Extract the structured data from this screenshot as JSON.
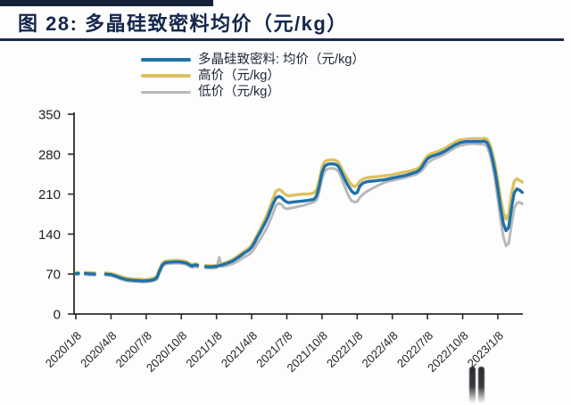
{
  "figure": {
    "title": "图 28: 多晶硅致密料均价（元/kg）"
  },
  "legend": {
    "items": [
      {
        "label": "多晶硅致密料: 均价（元/kg）",
        "color": "#1f72a8"
      },
      {
        "label": "高价（元/kg）",
        "color": "#ddc160"
      },
      {
        "label": "低价（元/kg）",
        "color": "#b9b9bc"
      }
    ]
  },
  "chart_data": {
    "type": "line",
    "title": "图 28: 多晶硅致密料均价（元/kg）",
    "xlabel": "",
    "ylabel": "元/kg",
    "ylim": [
      0,
      350
    ],
    "grid": false,
    "legend_position": "top",
    "x_tick_labels": [
      "2020/1/8",
      "2020/4/8",
      "2020/7/8",
      "2020/10/8",
      "2021/1/8",
      "2021/4/8",
      "2021/7/8",
      "2021/10/8",
      "2022/1/8",
      "2022/4/8",
      "2022/7/8",
      "2022/10/8",
      "2023/1/8"
    ],
    "y_ticks": [
      0,
      70,
      140,
      210,
      280,
      350
    ],
    "y_tick_labels": [
      "0",
      "70",
      "140",
      "210",
      "280",
      "350"
    ],
    "x_unit": "weeks since 2020/1/8 (columns: week, 均价, 高价, 低价; null = data gap)",
    "series": [
      {
        "name": "多晶硅致密料: 均价（元/kg）",
        "color": "#1f72a8",
        "width": 3.4,
        "column": 1
      },
      {
        "name": "高价（元/kg）",
        "color": "#ddc160",
        "width": 3.4,
        "column": 2
      },
      {
        "name": "低价（元/kg）",
        "color": "#b9b9bc",
        "width": 3.0,
        "column": 3
      }
    ],
    "rows": [
      [
        0,
        71,
        73,
        69
      ],
      [
        1,
        71,
        73,
        69
      ],
      [
        2,
        null,
        null,
        null
      ],
      [
        3.5,
        71,
        73,
        69
      ],
      [
        5,
        70.5,
        72.5,
        68.5
      ],
      [
        7,
        70,
        72,
        68
      ],
      [
        8.5,
        null,
        null,
        null
      ],
      [
        11,
        70,
        72,
        68
      ],
      [
        13,
        69,
        71,
        67
      ],
      [
        15,
        66,
        68.5,
        64
      ],
      [
        17,
        62.5,
        65,
        60.5
      ],
      [
        19,
        60,
        62.5,
        58
      ],
      [
        21,
        59,
        61.5,
        57
      ],
      [
        23,
        58.5,
        61,
        56.5
      ],
      [
        25,
        58,
        60.5,
        56
      ],
      [
        27,
        58.5,
        61,
        56.5
      ],
      [
        29,
        60.5,
        63,
        58.5
      ],
      [
        30,
        64,
        67,
        61
      ],
      [
        31,
        76,
        79,
        73
      ],
      [
        32,
        86,
        89,
        83
      ],
      [
        33,
        90,
        92.5,
        87.5
      ],
      [
        35,
        91,
        93.5,
        88.5
      ],
      [
        37,
        91.5,
        94,
        89
      ],
      [
        39,
        91,
        93.5,
        88.5
      ],
      [
        41,
        89,
        91.5,
        86.5
      ],
      [
        42,
        86,
        88.5,
        83.5
      ],
      [
        43,
        84,
        86.5,
        81.5
      ],
      [
        44,
        86,
        88,
        83
      ],
      [
        45,
        85,
        87,
        82
      ],
      [
        46,
        null,
        null,
        null
      ],
      [
        48,
        83,
        85,
        80.5
      ],
      [
        50,
        82.5,
        84.5,
        80
      ],
      [
        52,
        83.5,
        85.5,
        81
      ],
      [
        53,
        84.5,
        86.5,
        99
      ],
      [
        54,
        86,
        88,
        83
      ],
      [
        56,
        89,
        91,
        85
      ],
      [
        58,
        93,
        95.5,
        88
      ],
      [
        60,
        99,
        102,
        93
      ],
      [
        62,
        106,
        109,
        99
      ],
      [
        64,
        112,
        115.5,
        104
      ],
      [
        65,
        117,
        121,
        108
      ],
      [
        66,
        125,
        129,
        115
      ],
      [
        67,
        134,
        138,
        123
      ],
      [
        68,
        142,
        147,
        130
      ],
      [
        69,
        151,
        157,
        138
      ],
      [
        70,
        160,
        167,
        146
      ],
      [
        71,
        170,
        178,
        155
      ],
      [
        72,
        182,
        191,
        166
      ],
      [
        73,
        194,
        204,
        178
      ],
      [
        74,
        203,
        215,
        190
      ],
      [
        75,
        206,
        218,
        194
      ],
      [
        76,
        204,
        216,
        192
      ],
      [
        77,
        199,
        211,
        186
      ],
      [
        78,
        196,
        208,
        184
      ],
      [
        79,
        195,
        207,
        185
      ],
      [
        80,
        196,
        208,
        186
      ],
      [
        82,
        197,
        209,
        188
      ],
      [
        84,
        198,
        210,
        190
      ],
      [
        86,
        199,
        210,
        193
      ],
      [
        88,
        201,
        212,
        196
      ],
      [
        89,
        207,
        218,
        200
      ],
      [
        90,
        225,
        235,
        215
      ],
      [
        91,
        248,
        258,
        238
      ],
      [
        92,
        259,
        267,
        250
      ],
      [
        93,
        262,
        269,
        254
      ],
      [
        94,
        263,
        270,
        255
      ],
      [
        95,
        263,
        270,
        255
      ],
      [
        96,
        262,
        269,
        254
      ],
      [
        97,
        259,
        266,
        250
      ],
      [
        98,
        250,
        258,
        240
      ],
      [
        99,
        240,
        248,
        228
      ],
      [
        100,
        230,
        240,
        216
      ],
      [
        101,
        222,
        232,
        205
      ],
      [
        102,
        215,
        226,
        198
      ],
      [
        103,
        211,
        223,
        196
      ],
      [
        104,
        213,
        226,
        197
      ],
      [
        105,
        224,
        233,
        204
      ],
      [
        106,
        229,
        236,
        209
      ],
      [
        107,
        231,
        238,
        213
      ],
      [
        108,
        232,
        239,
        216
      ],
      [
        110,
        233,
        240,
        221
      ],
      [
        112,
        234,
        241,
        226
      ],
      [
        114,
        235,
        242,
        230
      ],
      [
        116,
        237,
        243,
        233
      ],
      [
        118,
        239,
        245,
        235
      ],
      [
        120,
        241,
        247,
        237
      ],
      [
        122,
        243,
        249,
        239
      ],
      [
        124,
        246,
        251,
        242
      ],
      [
        126,
        249,
        254,
        245
      ],
      [
        127,
        252,
        257,
        248
      ],
      [
        128,
        258,
        263,
        252
      ],
      [
        129,
        266,
        271,
        258
      ],
      [
        130,
        272,
        277,
        264
      ],
      [
        131,
        275,
        280,
        268
      ],
      [
        132,
        277,
        282,
        271
      ],
      [
        134,
        280,
        285,
        275
      ],
      [
        136,
        284,
        289,
        279
      ],
      [
        138,
        290,
        295,
        285
      ],
      [
        140,
        296,
        301,
        291
      ],
      [
        142,
        300,
        305,
        295
      ],
      [
        144,
        302,
        306,
        297
      ],
      [
        146,
        302,
        307,
        298
      ],
      [
        148,
        302,
        307,
        298
      ],
      [
        150,
        302,
        307,
        297
      ],
      [
        151,
        303,
        308,
        297
      ],
      [
        152,
        300,
        306,
        293
      ],
      [
        153,
        290,
        298,
        280
      ],
      [
        154,
        272,
        282,
        260
      ],
      [
        155,
        248,
        260,
        234
      ],
      [
        156,
        218,
        232,
        200
      ],
      [
        157,
        186,
        202,
        165
      ],
      [
        158,
        158,
        178,
        135
      ],
      [
        159,
        146,
        166,
        119
      ],
      [
        160,
        152,
        175,
        124
      ],
      [
        161,
        185,
        210,
        155
      ],
      [
        162,
        212,
        232,
        185
      ],
      [
        163,
        219,
        237,
        194
      ],
      [
        164,
        217,
        234,
        196
      ],
      [
        165,
        213,
        231,
        193
      ]
    ]
  },
  "colors": {
    "accent_navy": "#1c2b4e",
    "axis": "#2b2b2b",
    "tick_text": "#1f1f1f",
    "background": "#fdfdfe"
  },
  "watermark": {
    "name": "pause-bars-artifact"
  }
}
